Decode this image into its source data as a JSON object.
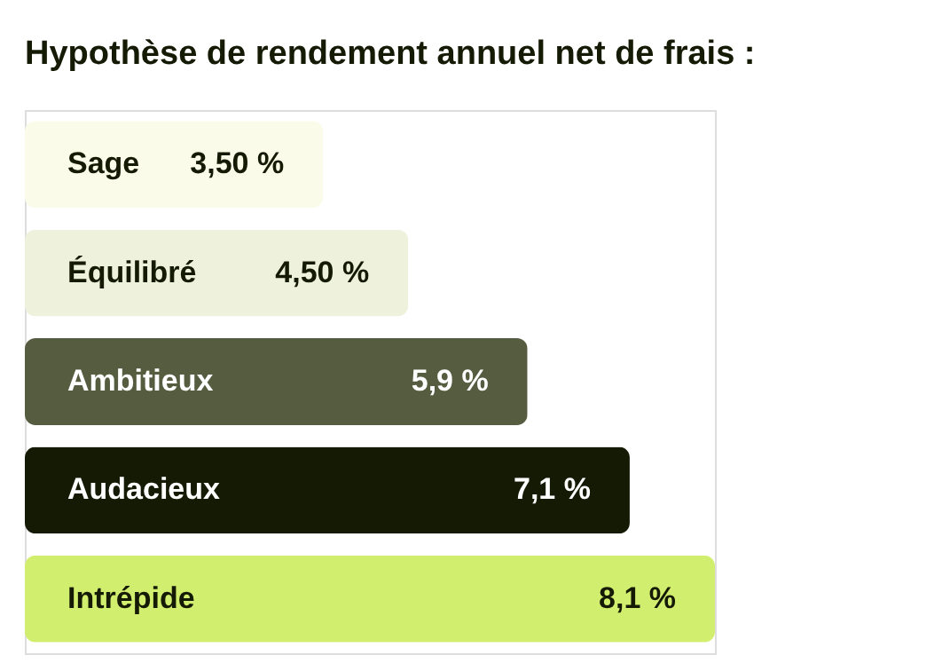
{
  "chart_data": {
    "type": "bar",
    "orientation": "horizontal",
    "title": "Hypothèse de rendement annuel net de frais :",
    "categories": [
      "Sage",
      "Équilibré",
      "Ambitieux",
      "Audacieux",
      "Intrépide"
    ],
    "values": [
      3.5,
      4.5,
      5.9,
      7.1,
      8.1
    ],
    "value_labels": [
      "3,50 %",
      "4,50 %",
      "5,9 %",
      "7,1 %",
      "8,1 %"
    ],
    "colors": [
      "#fafbe9",
      "#eef2dd",
      "#555c3f",
      "#151a05",
      "#d2ee6e"
    ],
    "tick_labels": false,
    "grid": false,
    "legend": false
  }
}
